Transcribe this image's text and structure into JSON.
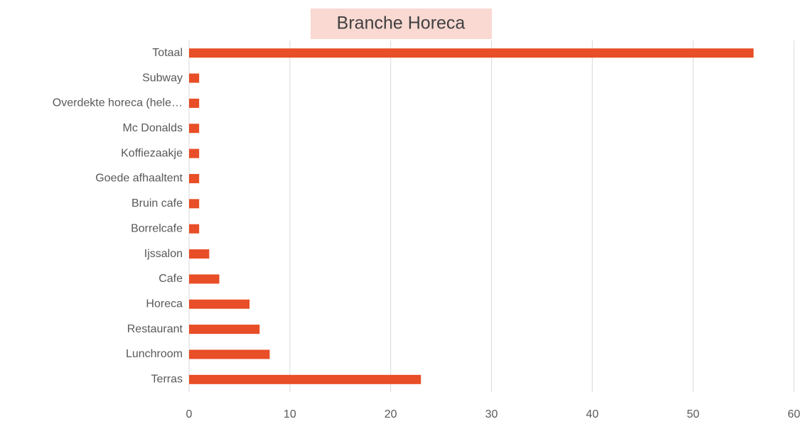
{
  "chart_data": {
    "type": "hbar",
    "title": "Branche Horeca",
    "categories": [
      "Totaal",
      "Subway",
      "Overdekte horeca (hele…",
      "Mc Donalds",
      "Koffiezaakje",
      "Goede afhaaltent",
      "Bruin cafe",
      "Borrelcafe",
      "Ijssalon",
      "Cafe",
      "Horeca",
      "Restaurant",
      "Lunchroom",
      "Terras"
    ],
    "values": [
      56,
      1,
      1,
      1,
      1,
      1,
      1,
      1,
      2,
      3,
      6,
      7,
      8,
      23
    ],
    "color": "#e84e27",
    "xlim": [
      0,
      60
    ],
    "xticks": [
      0,
      10,
      20,
      30,
      40,
      50,
      60
    ],
    "grid": true
  }
}
